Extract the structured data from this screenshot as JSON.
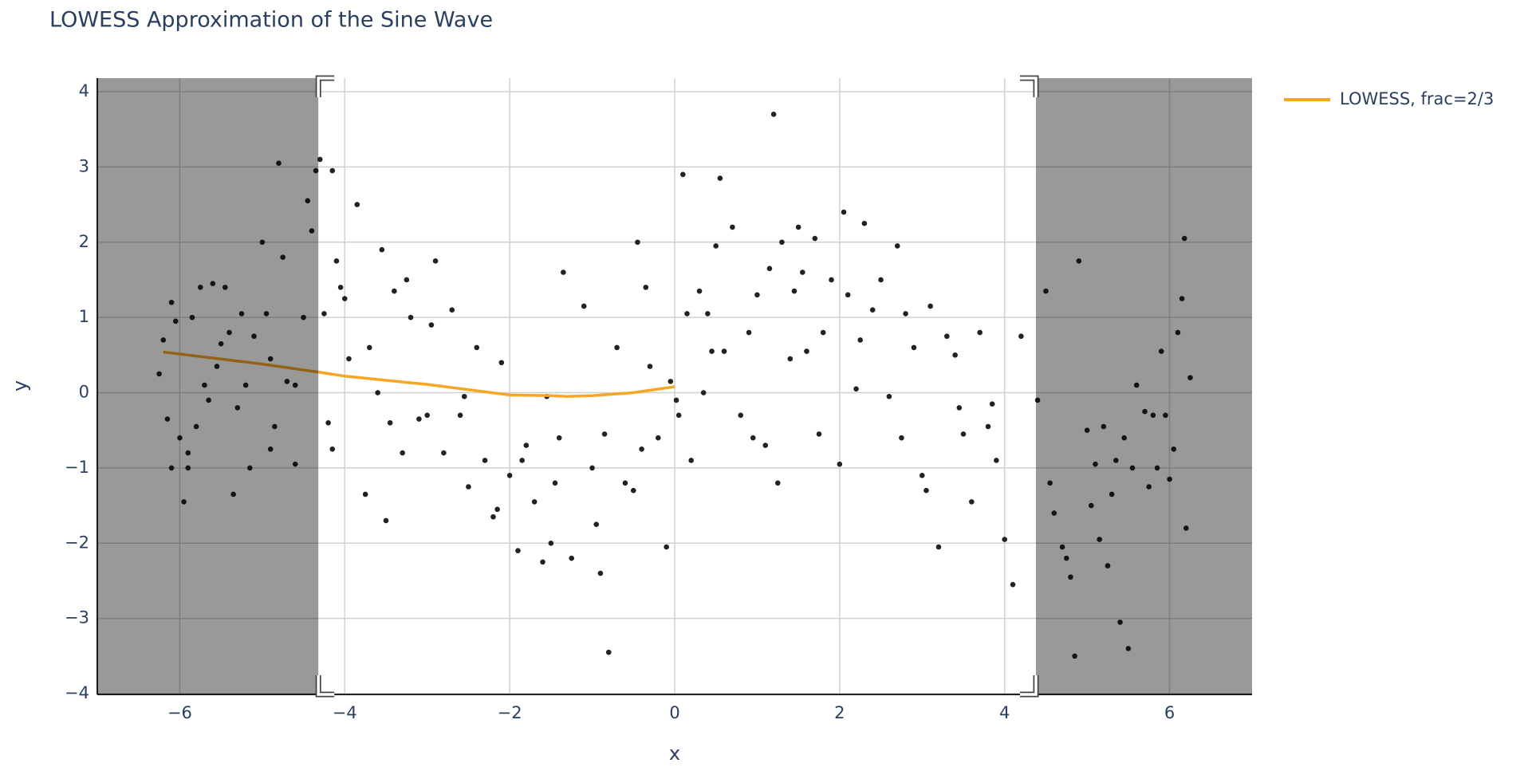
{
  "chart_data": {
    "type": "scatter",
    "title": "LOWESS Approximation of the Sine Wave",
    "x_label": "x",
    "y_label": "y",
    "xlim": [
      -7,
      7
    ],
    "ylim": [
      -4.01,
      4.18
    ],
    "xticks": [
      {
        "value": -6,
        "label": "−6"
      },
      {
        "value": -4,
        "label": "−4"
      },
      {
        "value": -2,
        "label": "−2"
      },
      0,
      2,
      4,
      6
    ],
    "yticks": [
      {
        "value": -4,
        "label": "−4"
      },
      {
        "value": -3,
        "label": "−3"
      },
      {
        "value": -2,
        "label": "−2"
      },
      {
        "value": -1,
        "label": "−1"
      },
      0,
      1,
      2,
      3,
      4
    ],
    "grid": true,
    "selection": [
      -4.32,
      4.38
    ],
    "points": {
      "color": "#222222",
      "x": [
        -6.25,
        -6.15,
        -6.1,
        -6.05,
        -6.0,
        -5.95,
        -5.9,
        -5.85,
        -5.8,
        -5.75,
        -5.7,
        -5.6,
        -5.55,
        -5.45,
        -5.4,
        -5.35,
        -5.3,
        -5.25,
        -5.15,
        -5.1,
        -5.0,
        -4.95,
        -4.9,
        -4.85,
        -4.8,
        -4.75,
        -4.7,
        -4.6,
        -4.5,
        -4.45,
        -4.4,
        -4.35,
        -4.3,
        -4.25,
        -4.2,
        -4.15,
        -4.1,
        -4.0,
        -6.2,
        -6.1,
        -5.9,
        -5.65,
        -5.5,
        -5.2,
        -4.9,
        -4.6,
        -4.15,
        -4.05,
        -3.95,
        -3.85,
        -3.7,
        -3.6,
        -3.55,
        -3.45,
        -3.4,
        -3.3,
        -3.2,
        -3.1,
        -3.0,
        -2.9,
        -2.8,
        -2.7,
        -2.6,
        -2.5,
        -2.4,
        -2.3,
        -2.2,
        -2.1,
        -2.0,
        -1.9,
        -1.8,
        -1.7,
        -1.6,
        -1.5,
        -1.4,
        -1.35,
        -1.25,
        -1.1,
        -1.0,
        -0.9,
        -0.85,
        -0.8,
        -0.7,
        -0.6,
        -0.5,
        -0.45,
        -0.4,
        -0.3,
        -0.2,
        -0.1,
        -0.05,
        -3.75,
        -3.5,
        -3.25,
        -2.95,
        -2.55,
        -2.15,
        -1.85,
        -1.55,
        -1.45,
        -0.95,
        -0.35,
        0.05,
        0.1,
        0.15,
        0.2,
        0.3,
        0.35,
        0.4,
        0.5,
        0.55,
        0.6,
        0.7,
        0.8,
        0.9,
        1.0,
        1.1,
        1.15,
        1.2,
        1.3,
        1.4,
        1.45,
        1.5,
        1.55,
        1.6,
        1.7,
        1.8,
        1.9,
        2.0,
        2.05,
        2.1,
        2.2,
        2.3,
        2.4,
        2.5,
        2.6,
        2.7,
        2.8,
        2.9,
        3.0,
        3.1,
        3.2,
        3.3,
        3.4,
        3.5,
        3.6,
        3.7,
        3.8,
        3.9,
        4.0,
        4.1,
        4.2,
        0.02,
        0.45,
        0.95,
        1.25,
        1.75,
        2.25,
        2.75,
        3.05,
        3.45,
        3.85,
        4.4,
        4.5,
        4.6,
        4.7,
        4.8,
        4.85,
        4.9,
        5.0,
        5.05,
        5.1,
        5.2,
        5.25,
        5.3,
        5.4,
        5.45,
        5.5,
        5.6,
        5.7,
        5.8,
        5.85,
        5.9,
        6.0,
        6.05,
        6.1,
        6.15,
        6.2,
        6.25,
        4.55,
        4.75,
        5.15,
        5.35,
        5.55,
        5.75,
        5.95,
        6.18
      ],
      "y": [
        0.25,
        -0.35,
        1.2,
        0.95,
        -0.6,
        -1.45,
        -0.8,
        1.0,
        -0.45,
        1.4,
        0.1,
        1.45,
        0.35,
        1.4,
        0.8,
        -1.35,
        -0.2,
        1.05,
        -1.0,
        0.75,
        2.0,
        1.05,
        0.45,
        -0.45,
        3.05,
        1.8,
        0.15,
        -0.95,
        1.0,
        2.55,
        2.15,
        2.95,
        3.1,
        1.05,
        -0.4,
        -0.75,
        1.75,
        1.25,
        0.7,
        -1.0,
        -1.0,
        -0.1,
        0.65,
        0.1,
        -0.75,
        0.1,
        2.95,
        1.4,
        0.45,
        2.5,
        0.6,
        -0.0,
        1.9,
        -0.4,
        1.35,
        -0.8,
        1.0,
        -0.35,
        -0.3,
        1.75,
        -0.8,
        1.1,
        -0.3,
        -1.25,
        0.6,
        -0.9,
        -1.65,
        0.4,
        -1.1,
        -2.1,
        -0.7,
        -1.45,
        -2.25,
        -2.0,
        -0.6,
        1.6,
        -2.2,
        1.15,
        -1.0,
        -2.4,
        -0.55,
        -3.45,
        0.6,
        -1.2,
        -1.3,
        2.0,
        -0.75,
        0.35,
        -0.6,
        -2.05,
        0.15,
        -1.35,
        -1.7,
        1.5,
        0.9,
        -0.05,
        -1.55,
        -0.9,
        -0.05,
        -1.2,
        -1.75,
        1.4,
        -0.3,
        2.9,
        1.05,
        -0.9,
        1.35,
        0.0,
        1.05,
        1.95,
        2.85,
        0.55,
        2.2,
        -0.3,
        0.8,
        1.3,
        -0.7,
        1.65,
        3.7,
        2.0,
        0.45,
        1.35,
        2.2,
        1.6,
        0.55,
        2.05,
        0.8,
        1.5,
        -0.95,
        2.4,
        1.3,
        0.05,
        2.25,
        1.1,
        1.5,
        -0.05,
        1.95,
        1.05,
        0.6,
        -1.1,
        1.15,
        -2.05,
        0.75,
        0.5,
        -0.55,
        -1.45,
        0.8,
        -0.45,
        -0.9,
        -1.95,
        -2.55,
        0.75,
        -0.1,
        0.55,
        -0.6,
        -1.2,
        -0.55,
        0.7,
        -0.6,
        -1.3,
        -0.2,
        -0.15,
        -0.1,
        1.35,
        -1.6,
        -2.05,
        -2.45,
        -3.5,
        1.75,
        -0.5,
        -1.5,
        -0.95,
        -0.45,
        -2.3,
        -1.35,
        -3.05,
        -0.6,
        -3.4,
        0.1,
        -0.25,
        -0.3,
        -1.0,
        0.55,
        -1.15,
        -0.75,
        0.8,
        1.25,
        -1.8,
        0.2,
        -1.2,
        -2.2,
        -1.95,
        -0.9,
        -1.0,
        -1.25,
        -0.3,
        2.05
      ]
    },
    "series": [
      {
        "name": "LOWESS, frac=2/3",
        "color": "#f5a623",
        "x": [
          -6.2,
          -5.0,
          -4.3,
          -4.0,
          -3.0,
          -2.0,
          -1.5,
          -1.3,
          -1.0,
          -0.5,
          0.0
        ],
        "values": [
          0.54,
          0.38,
          0.27,
          0.22,
          0.11,
          -0.03,
          -0.04,
          -0.05,
          -0.04,
          0.0,
          0.08
        ]
      }
    ]
  }
}
